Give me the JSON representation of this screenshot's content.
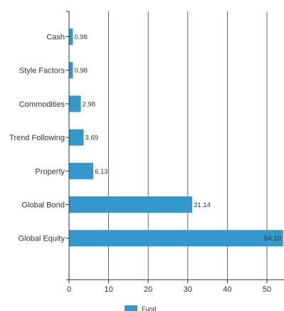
{
  "chart_data": {
    "type": "bar",
    "orientation": "horizontal",
    "categories": [
      "Cash",
      "Style Factors",
      "Commodities",
      "Trend Following",
      "Property",
      "Global Bond",
      "Global Equity"
    ],
    "series": [
      {
        "name": "Fund",
        "values": [
          0.98,
          0.98,
          2.98,
          3.69,
          6.13,
          31.14,
          54.1
        ],
        "value_labels": [
          "0.98",
          "0.98",
          "2.98",
          "3.69",
          "6.13",
          "31.14",
          "54.10"
        ],
        "color": "#3399cc"
      }
    ],
    "x_ticks": [
      "0",
      "10",
      "20",
      "30",
      "40",
      "50"
    ],
    "xlim": [
      0,
      54.1
    ],
    "xlabel": "",
    "ylabel": "",
    "title": "",
    "grid": "vertical",
    "legend": "bottom-center"
  }
}
